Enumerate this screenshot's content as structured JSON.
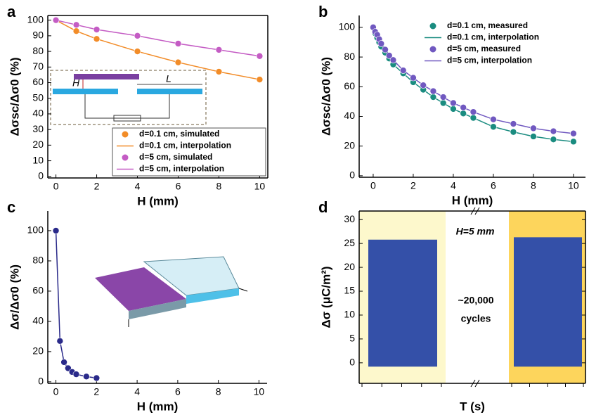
{
  "chart_data": [
    {
      "type": "line",
      "panel": "a",
      "xlabel": "H (mm)",
      "ylabel": "Δσsc/Δσ0 (%)",
      "x": [
        0,
        1,
        2,
        4,
        6,
        8,
        10
      ],
      "series": [
        {
          "name": "d=0.1 cm, simulated",
          "fit_name": "d=0.1 cm, interpolation",
          "color": "#f28c28",
          "values": [
            100,
            93,
            88,
            80,
            73,
            67,
            62
          ]
        },
        {
          "name": "d=5 cm, simulated",
          "fit_name": "d=5 cm, interpolation",
          "color": "#c45cc4",
          "values": [
            100,
            97,
            94,
            90,
            85,
            81,
            77
          ]
        }
      ],
      "xlim": [
        -0.4,
        10.4
      ],
      "ylim": [
        -1,
        103
      ],
      "xticks": [
        0,
        2,
        4,
        6,
        8,
        10
      ],
      "yticks": [
        0,
        10,
        20,
        30,
        40,
        50,
        60,
        70,
        80,
        90,
        100
      ],
      "inset_labels": [
        "H",
        "L"
      ]
    },
    {
      "type": "line",
      "panel": "b",
      "xlabel": "H (mm)",
      "ylabel": "Δσsc/Δσ0 (%)",
      "x": [
        0,
        0.1,
        0.2,
        0.3,
        0.4,
        0.6,
        0.8,
        1,
        1.5,
        2,
        2.5,
        3,
        3.5,
        4,
        4.5,
        5,
        6,
        7,
        8,
        9,
        10
      ],
      "series": [
        {
          "name": "d=0.1 cm, measured",
          "fit_name": "d=0.1 cm, interpolation",
          "color": "#1a8c80",
          "values": [
            100,
            96,
            93,
            90,
            87,
            83,
            79,
            75,
            69,
            63,
            58,
            53,
            49,
            45,
            42,
            39,
            33,
            29.5,
            26.5,
            24.5,
            23
          ]
        },
        {
          "name": "d=5 cm, measured",
          "fit_name": "d=5 cm, interpolation",
          "color": "#7058c0",
          "values": [
            100,
            97,
            95,
            92,
            89,
            85,
            81,
            78,
            71,
            66,
            61,
            57,
            53,
            49,
            46,
            43,
            38,
            35,
            32,
            30,
            28.5
          ]
        }
      ],
      "xlim": [
        -0.7,
        10.6
      ],
      "ylim": [
        -1,
        108
      ],
      "xticks": [
        0,
        2,
        4,
        6,
        8,
        10
      ],
      "yticks": [
        0,
        20,
        40,
        60,
        80,
        100
      ]
    },
    {
      "type": "line",
      "panel": "c",
      "xlabel": "H (mm)",
      "ylabel": "Δσ/Δσ0 (%)",
      "x": [
        0,
        0.2,
        0.4,
        0.6,
        0.8,
        1,
        1.5,
        2
      ],
      "series": [
        {
          "color": "#2a2a8a",
          "values": [
            100,
            27,
            13,
            9,
            6.5,
            5,
            3.5,
            2.5
          ]
        }
      ],
      "xlim": [
        -0.4,
        10.4
      ],
      "ylim": [
        -1,
        113
      ],
      "xticks": [
        0,
        2,
        4,
        6,
        8,
        10
      ],
      "yticks": [
        0,
        20,
        40,
        60,
        80,
        100
      ]
    },
    {
      "type": "signal",
      "panel": "d",
      "xlabel": "T (s)",
      "ylabel": "Δσ (μC/m²)",
      "segments": [
        {
          "low": -0.8,
          "high": 25.8
        },
        {
          "low": -0.8,
          "high": 26.3
        }
      ],
      "color": "#3450a8",
      "backgrounds": [
        "#fdf8cc",
        "#fdd55c"
      ],
      "annotations": [
        "H=5 mm",
        "~20,000",
        "cycles"
      ],
      "ylim": [
        -4.3,
        31.8
      ],
      "yticks": [
        0,
        5,
        10,
        15,
        20,
        25,
        30
      ]
    }
  ]
}
